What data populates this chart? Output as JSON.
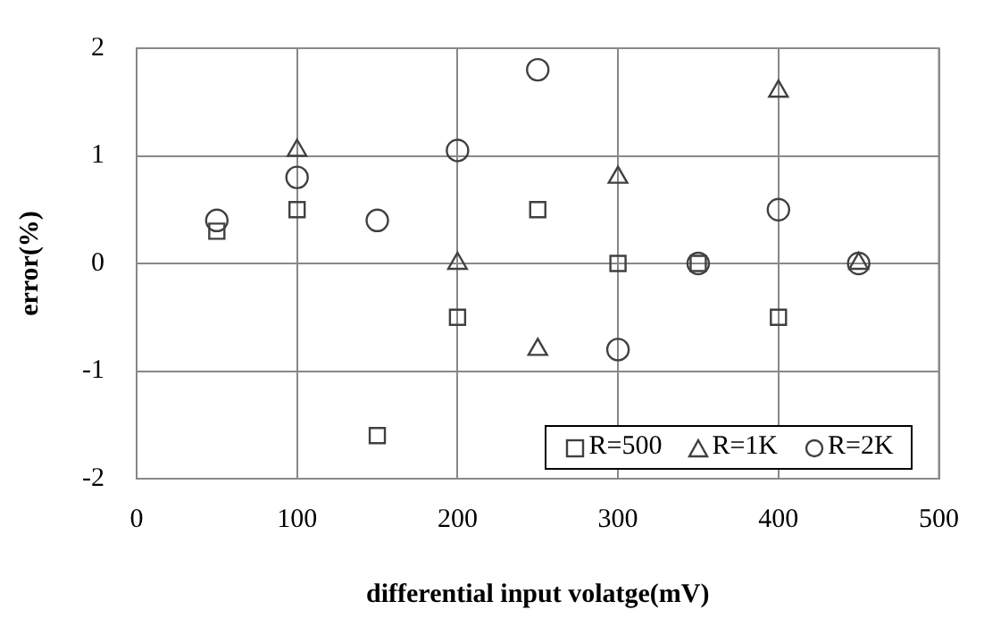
{
  "chart_data": {
    "type": "scatter",
    "xlabel": "differential input volatge(mV)",
    "ylabel": "error(%)",
    "xlim": [
      0,
      500
    ],
    "xticks": [
      0,
      100,
      200,
      300,
      400,
      500
    ],
    "ylim": [
      -2,
      2
    ],
    "yticks": [
      -2,
      -1,
      0,
      1,
      2
    ],
    "grid": true,
    "legend": "bottom right",
    "series": [
      {
        "name": "R=500",
        "color": "#404040",
        "marker": "square",
        "x": [
          50,
          100,
          150,
          200,
          250,
          300,
          350,
          400
        ],
        "values": [
          0.3,
          0.5,
          -1.6,
          -0.5,
          0.5,
          0,
          0,
          -0.5
        ]
      },
      {
        "name": "R=1K",
        "color": "#404040",
        "marker": "triangle",
        "x": [
          100,
          200,
          250,
          300,
          400,
          450
        ],
        "values": [
          1.05,
          0,
          -0.8,
          0.8,
          1.6,
          0
        ]
      },
      {
        "name": "R=2K",
        "color": "#404040",
        "marker": "circle",
        "x": [
          50,
          100,
          150,
          200,
          250,
          300,
          350,
          400,
          450
        ],
        "values": [
          0.4,
          0.8,
          0.4,
          1.05,
          1.8,
          -0.8,
          0,
          0.5,
          0
        ]
      }
    ]
  }
}
